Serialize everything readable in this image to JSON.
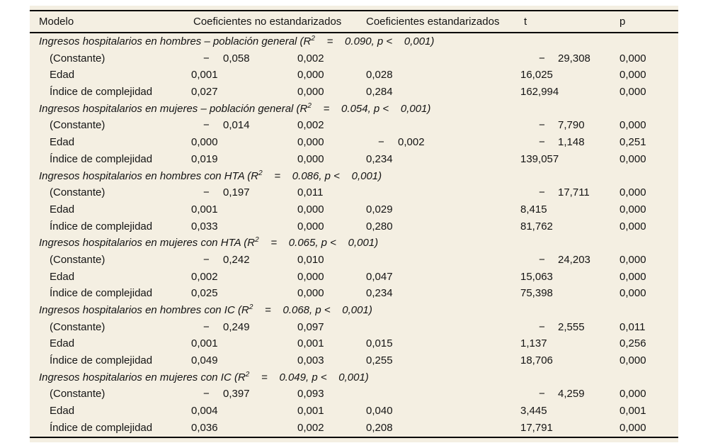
{
  "table": {
    "colors": {
      "background": "#f4efe2",
      "text": "#141414",
      "rule": "#000000"
    },
    "columns": {
      "modelo": "Modelo",
      "no_std": "Coeficientes no estandarizados",
      "std": "Coeficientes estandarizados",
      "t": "t",
      "p": "p"
    },
    "sections": [
      {
        "title_prefix": "Ingresos hospitalarios en hombres – población general (R",
        "title_sup": "2",
        "title_suffix": "    =    0.090, p <    0,001)",
        "rows": [
          {
            "label": "(Constante)",
            "b": "−0,058",
            "se": "0,002",
            "beta": "",
            "t": "−29,308",
            "p": "0,000"
          },
          {
            "label": "Edad",
            "b": "0,001",
            "se": "0,000",
            "beta": "0,028",
            "t": "16,025",
            "p": "0,000"
          },
          {
            "label": "Índice de complejidad",
            "b": "0,027",
            "se": "0,000",
            "beta": "0,284",
            "t": "162,994",
            "p": "0,000"
          }
        ]
      },
      {
        "title_prefix": "Ingresos hospitalarios en mujeres – población general (R",
        "title_sup": "2",
        "title_suffix": "    =    0.054, p <    0,001)",
        "rows": [
          {
            "label": "(Constante)",
            "b": "−0,014",
            "se": "0,002",
            "beta": "",
            "t": "−7,790",
            "p": "0,000"
          },
          {
            "label": "Edad",
            "b": "0,000",
            "se": "0,000",
            "beta": "−0,002",
            "t": "−1,148",
            "p": "0,251"
          },
          {
            "label": "Índice de complejidad",
            "b": "0,019",
            "se": "0,000",
            "beta": "0,234",
            "t": "139,057",
            "p": "0,000"
          }
        ]
      },
      {
        "title_prefix": "Ingresos hospitalarios en hombres con HTA (R",
        "title_sup": "2",
        "title_suffix": "    =    0.086, p <    0,001)",
        "rows": [
          {
            "label": "(Constante)",
            "b": "−0,197",
            "se": "0,011",
            "beta": "",
            "t": "−17,711",
            "p": "0,000"
          },
          {
            "label": "Edad",
            "b": "0,001",
            "se": "0,000",
            "beta": "0,029",
            "t": "8,415",
            "p": "0,000"
          },
          {
            "label": "Índice de complejidad",
            "b": "0,033",
            "se": "0,000",
            "beta": "0,280",
            "t": "81,762",
            "p": "0,000"
          }
        ]
      },
      {
        "title_prefix": "Ingresos hospitalarios en mujeres con HTA (R",
        "title_sup": "2",
        "title_suffix": "    =    0.065, p <    0,001)",
        "rows": [
          {
            "label": "(Constante)",
            "b": "−0,242",
            "se": "0,010",
            "beta": "",
            "t": "−24,203",
            "p": "0,000"
          },
          {
            "label": "Edad",
            "b": "0,002",
            "se": "0,000",
            "beta": "0,047",
            "t": "15,063",
            "p": "0,000"
          },
          {
            "label": "Índice de complejidad",
            "b": "0,025",
            "se": "0,000",
            "beta": "0,234",
            "t": "75,398",
            "p": "0,000"
          }
        ]
      },
      {
        "title_prefix": "Ingresos hospitalarios en hombres con IC (R",
        "title_sup": "2",
        "title_suffix": "    =    0.068, p <    0,001)",
        "rows": [
          {
            "label": "(Constante)",
            "b": "−0,249",
            "se": "0,097",
            "beta": "",
            "t": "−2,555",
            "p": "0,011"
          },
          {
            "label": "Edad",
            "b": "0,001",
            "se": "0,001",
            "beta": "0,015",
            "t": "1,137",
            "p": "0,256"
          },
          {
            "label": "Índice de complejidad",
            "b": "0,049",
            "se": "0,003",
            "beta": "0,255",
            "t": "18,706",
            "p": "0,000"
          }
        ]
      },
      {
        "title_prefix": "Ingresos hospitalarios en mujeres con IC (R",
        "title_sup": "2",
        "title_suffix": "    =    0.049, p <    0,001)",
        "rows": [
          {
            "label": "(Constante)",
            "b": "−0,397",
            "se": "0,093",
            "beta": "",
            "t": "−4,259",
            "p": "0,000"
          },
          {
            "label": "Edad",
            "b": "0,004",
            "se": "0,001",
            "beta": "0,040",
            "t": "3,445",
            "p": "0,001"
          },
          {
            "label": "Índice de complejidad",
            "b": "0,036",
            "se": "0,002",
            "beta": "0,208",
            "t": "17,791",
            "p": "0,000"
          }
        ]
      }
    ]
  }
}
